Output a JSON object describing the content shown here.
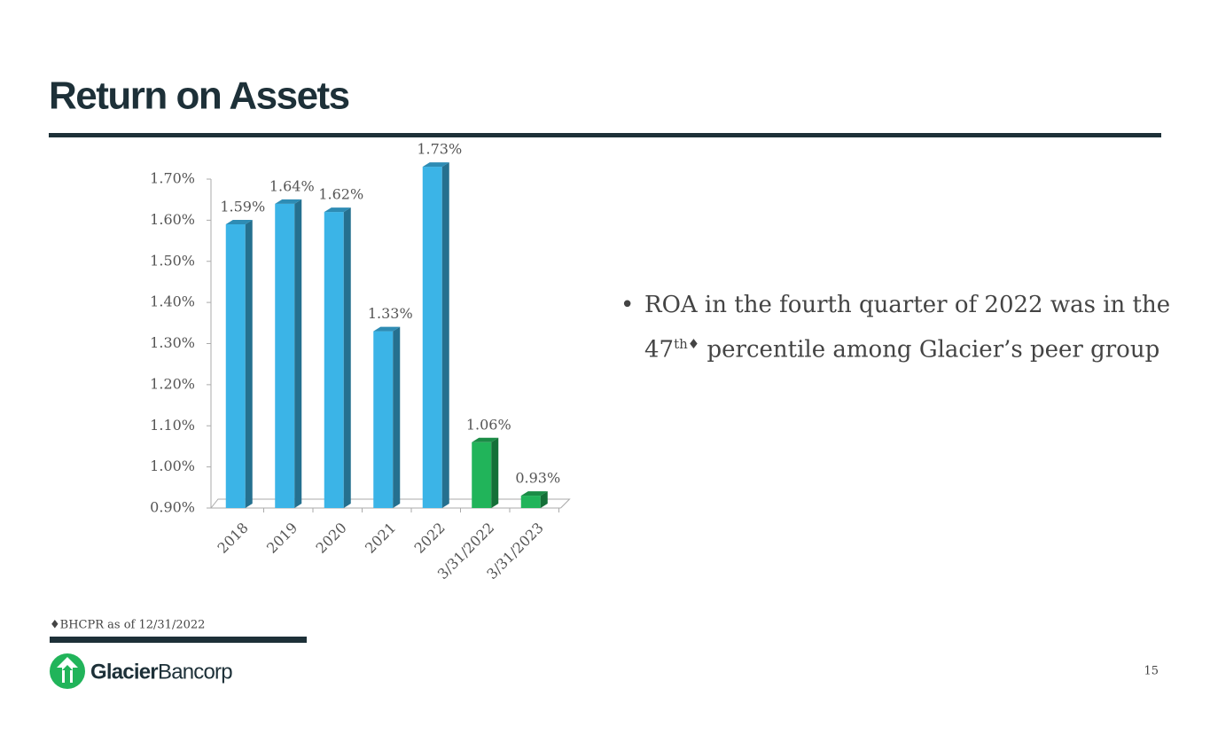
{
  "title": "Return on Assets",
  "chart_data": {
    "type": "bar3d",
    "categories": [
      "2018",
      "2019",
      "2020",
      "2021",
      "2022",
      "3/31/2022",
      "3/31/2023"
    ],
    "values": [
      1.59,
      1.64,
      1.62,
      1.33,
      1.73,
      1.06,
      0.93
    ],
    "value_labels": [
      "1.59%",
      "1.64%",
      "1.62%",
      "1.33%",
      "1.73%",
      "1.06%",
      "0.93%"
    ],
    "colors": [
      "#3bb4e7",
      "#3bb4e7",
      "#3bb4e7",
      "#3bb4e7",
      "#3bb4e7",
      "#21b45a",
      "#21b45a"
    ],
    "ylim": [
      0.9,
      1.7
    ],
    "yticks": [
      {
        "value": 0.9,
        "label": "0.90%"
      },
      {
        "value": 1.0,
        "label": "1.00%"
      },
      {
        "value": 1.1,
        "label": "1.10%"
      },
      {
        "value": 1.2,
        "label": "1.20%"
      },
      {
        "value": 1.3,
        "label": "1.30%"
      },
      {
        "value": 1.4,
        "label": "1.40%"
      },
      {
        "value": 1.5,
        "label": "1.50%"
      },
      {
        "value": 1.6,
        "label": "1.60%"
      },
      {
        "value": 1.7,
        "label": "1.70%"
      }
    ],
    "grid": false
  },
  "bullet": {
    "part1": "ROA in the fourth quarter of 2022 was in the",
    "part2": "47",
    "sup": "th♦",
    "part3": " percentile among Glacier’s peer group"
  },
  "footnote": "♦BHCPR as of 12/31/2022",
  "logo": {
    "brand": "Glacier",
    "suffix": "Bancorp"
  },
  "page_number": "15"
}
